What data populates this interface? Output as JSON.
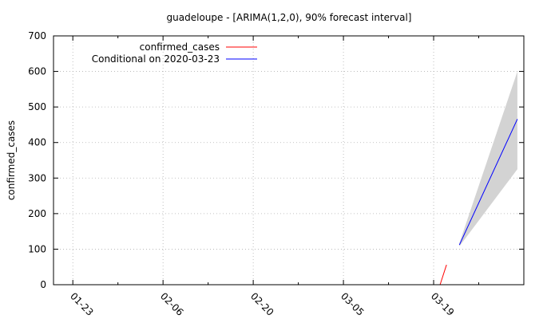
{
  "chart_data": {
    "type": "line",
    "title": "guadeloupe -  [ARIMA(1,2,0), 90% forecast interval]",
    "ylabel": "confirmed_cases",
    "xlabel": "",
    "ylim": [
      0,
      700
    ],
    "yticks": [
      0,
      100,
      200,
      300,
      400,
      500,
      600,
      700
    ],
    "xrange": [
      "2020-01-20",
      "2020-04-02"
    ],
    "xticks": [
      {
        "date": "2020-01-23",
        "label": "01-23"
      },
      {
        "date": "2020-02-06",
        "label": "02-06"
      },
      {
        "date": "2020-02-20",
        "label": "02-20"
      },
      {
        "date": "2020-03-05",
        "label": "03-05"
      },
      {
        "date": "2020-03-19",
        "label": "03-19"
      }
    ],
    "grid": true,
    "legend_position": "top-left",
    "series": [
      {
        "name": "confirmed_cases",
        "color": "#ff0000",
        "x": [
          "2020-03-20",
          "2020-03-21"
        ],
        "y": [
          0,
          56
        ]
      },
      {
        "name": "Conditional on 2020-03-23",
        "color": "#0000ff",
        "x": [
          "2020-03-23",
          "2020-04-01"
        ],
        "y": [
          112,
          466
        ]
      }
    ],
    "interval": {
      "color": "#d3d3d3",
      "x": [
        "2020-03-23",
        "2020-04-01"
      ],
      "lower": [
        108,
        325
      ],
      "upper": [
        117,
        600
      ]
    }
  }
}
